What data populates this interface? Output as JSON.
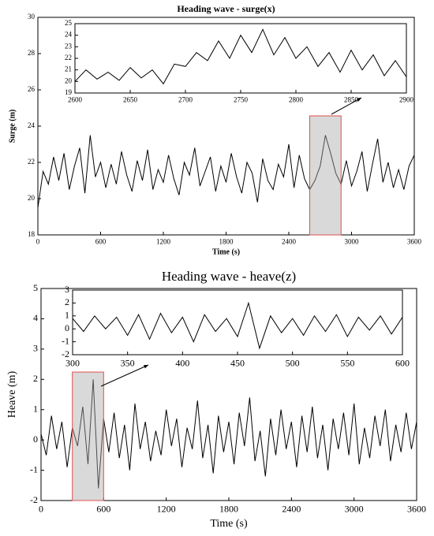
{
  "chart_data": [
    {
      "type": "line",
      "title": "Heading wave - surge(x)",
      "xlabel": "Time (s)",
      "ylabel": "Surge (m)",
      "color": "#000000",
      "xlim": [
        0,
        3600
      ],
      "xticks": [
        0,
        600,
        1200,
        1800,
        2400,
        3000,
        3600
      ],
      "ylim": [
        18,
        30
      ],
      "yticks": [
        18,
        20,
        22,
        24,
        26,
        28,
        30
      ],
      "x": [
        0,
        50,
        100,
        150,
        200,
        250,
        300,
        350,
        400,
        450,
        500,
        550,
        600,
        650,
        700,
        750,
        800,
        850,
        900,
        950,
        1000,
        1050,
        1100,
        1150,
        1200,
        1250,
        1300,
        1350,
        1400,
        1450,
        1500,
        1550,
        1600,
        1650,
        1700,
        1750,
        1800,
        1850,
        1900,
        1950,
        2000,
        2050,
        2100,
        2150,
        2200,
        2250,
        2300,
        2350,
        2400,
        2450,
        2500,
        2550,
        2600,
        2650,
        2700,
        2750,
        2800,
        2850,
        2900,
        2950,
        3000,
        3050,
        3100,
        3150,
        3200,
        3250,
        3300,
        3350,
        3400,
        3450,
        3500,
        3550,
        3600
      ],
      "values": [
        19.5,
        21.5,
        20.8,
        22.3,
        21.0,
        22.5,
        20.5,
        21.8,
        22.8,
        20.3,
        23.5,
        21.2,
        22.0,
        20.6,
        21.9,
        20.8,
        22.6,
        21.3,
        20.4,
        22.1,
        21.0,
        22.7,
        20.5,
        21.6,
        20.9,
        22.4,
        21.1,
        20.2,
        22.0,
        21.3,
        22.8,
        20.7,
        21.5,
        22.3,
        20.4,
        21.8,
        20.9,
        22.5,
        21.2,
        20.3,
        22.0,
        21.4,
        19.8,
        22.2,
        21.0,
        20.5,
        21.9,
        21.2,
        23.0,
        20.6,
        22.4,
        21.1,
        20.5,
        21.0,
        21.8,
        23.5,
        22.5,
        21.4,
        20.8,
        22.1,
        20.7,
        21.5,
        22.6,
        20.4,
        21.9,
        23.3,
        20.9,
        22.0,
        20.6,
        21.6,
        20.5,
        21.8,
        22.4
      ],
      "inset": {
        "xlim": [
          2600,
          2900
        ],
        "xticks": [
          2600,
          2650,
          2700,
          2750,
          2800,
          2850,
          2900
        ],
        "ylim": [
          19,
          25
        ],
        "yticks": [
          19,
          20,
          21,
          22,
          23,
          24,
          25
        ],
        "x": [
          2600,
          2610,
          2620,
          2630,
          2640,
          2650,
          2660,
          2670,
          2680,
          2690,
          2700,
          2710,
          2720,
          2730,
          2740,
          2750,
          2760,
          2770,
          2780,
          2790,
          2800,
          2810,
          2820,
          2830,
          2840,
          2850,
          2860,
          2870,
          2880,
          2890,
          2900
        ],
        "values": [
          20.0,
          21.0,
          20.2,
          20.8,
          20.1,
          21.2,
          20.3,
          21.0,
          19.8,
          21.5,
          21.3,
          22.5,
          21.8,
          23.5,
          22.0,
          24.0,
          22.5,
          24.5,
          22.3,
          23.8,
          22.0,
          23.0,
          21.3,
          22.5,
          20.8,
          22.7,
          21.0,
          22.3,
          20.5,
          21.8,
          20.4
        ]
      }
    },
    {
      "type": "line",
      "title": "Heading wave - heave(z)",
      "xlabel": "Time (s)",
      "ylabel": "Heave (m)",
      "color": "#000000",
      "xlim": [
        0,
        3600
      ],
      "xticks": [
        0,
        600,
        1200,
        1800,
        2400,
        3000,
        3600
      ],
      "ylim": [
        -2,
        5
      ],
      "yticks": [
        -2,
        -1,
        0,
        1,
        2,
        3,
        4,
        5
      ],
      "x": [
        0,
        50,
        100,
        150,
        200,
        250,
        300,
        350,
        400,
        450,
        500,
        550,
        600,
        650,
        700,
        750,
        800,
        850,
        900,
        950,
        1000,
        1050,
        1100,
        1150,
        1200,
        1250,
        1300,
        1350,
        1400,
        1450,
        1500,
        1550,
        1600,
        1650,
        1700,
        1750,
        1800,
        1850,
        1900,
        1950,
        2000,
        2050,
        2100,
        2150,
        2200,
        2250,
        2300,
        2350,
        2400,
        2450,
        2500,
        2550,
        2600,
        2650,
        2700,
        2750,
        2800,
        2850,
        2900,
        2950,
        3000,
        3050,
        3100,
        3150,
        3200,
        3250,
        3300,
        3350,
        3400,
        3450,
        3500,
        3550,
        3600
      ],
      "values": [
        0.2,
        -0.5,
        0.8,
        -0.3,
        0.6,
        -0.9,
        0.4,
        -0.2,
        1.1,
        -0.8,
        2.0,
        -1.6,
        0.7,
        -0.4,
        0.9,
        -0.6,
        0.5,
        -1.0,
        1.2,
        -0.3,
        0.6,
        -0.7,
        0.3,
        -0.5,
        1.0,
        -0.2,
        0.7,
        -0.9,
        0.4,
        -0.3,
        1.3,
        -0.6,
        0.5,
        -1.1,
        0.8,
        -0.4,
        0.6,
        -0.8,
        0.9,
        -0.2,
        1.4,
        -0.7,
        0.3,
        -1.2,
        0.7,
        -0.5,
        1.0,
        -0.3,
        0.6,
        -0.9,
        0.8,
        -0.4,
        1.1,
        -0.6,
        0.5,
        -1.0,
        0.7,
        -0.3,
        0.9,
        -0.5,
        1.2,
        -0.8,
        0.4,
        -0.6,
        0.8,
        -0.2,
        1.0,
        -0.7,
        0.5,
        -0.4,
        0.9,
        -0.3,
        0.6
      ],
      "inset": {
        "xlim": [
          300,
          600
        ],
        "xticks": [
          300,
          350,
          400,
          450,
          500,
          550,
          600
        ],
        "ylim": [
          -2,
          3
        ],
        "yticks": [
          -2,
          -1,
          0,
          1,
          2,
          3
        ],
        "x": [
          300,
          310,
          320,
          330,
          340,
          350,
          360,
          370,
          380,
          390,
          400,
          410,
          420,
          430,
          440,
          450,
          460,
          470,
          480,
          490,
          500,
          510,
          520,
          530,
          540,
          550,
          560,
          570,
          580,
          590,
          600
        ],
        "values": [
          0.8,
          -0.2,
          1.0,
          0.0,
          0.9,
          -0.5,
          1.1,
          -0.8,
          1.2,
          -0.3,
          0.9,
          -1.0,
          1.1,
          -0.2,
          0.8,
          -0.6,
          2.0,
          -1.5,
          1.0,
          -0.3,
          0.8,
          -0.5,
          1.0,
          -0.2,
          1.1,
          -0.6,
          0.9,
          -0.1,
          1.0,
          -0.4,
          0.9
        ]
      }
    }
  ]
}
